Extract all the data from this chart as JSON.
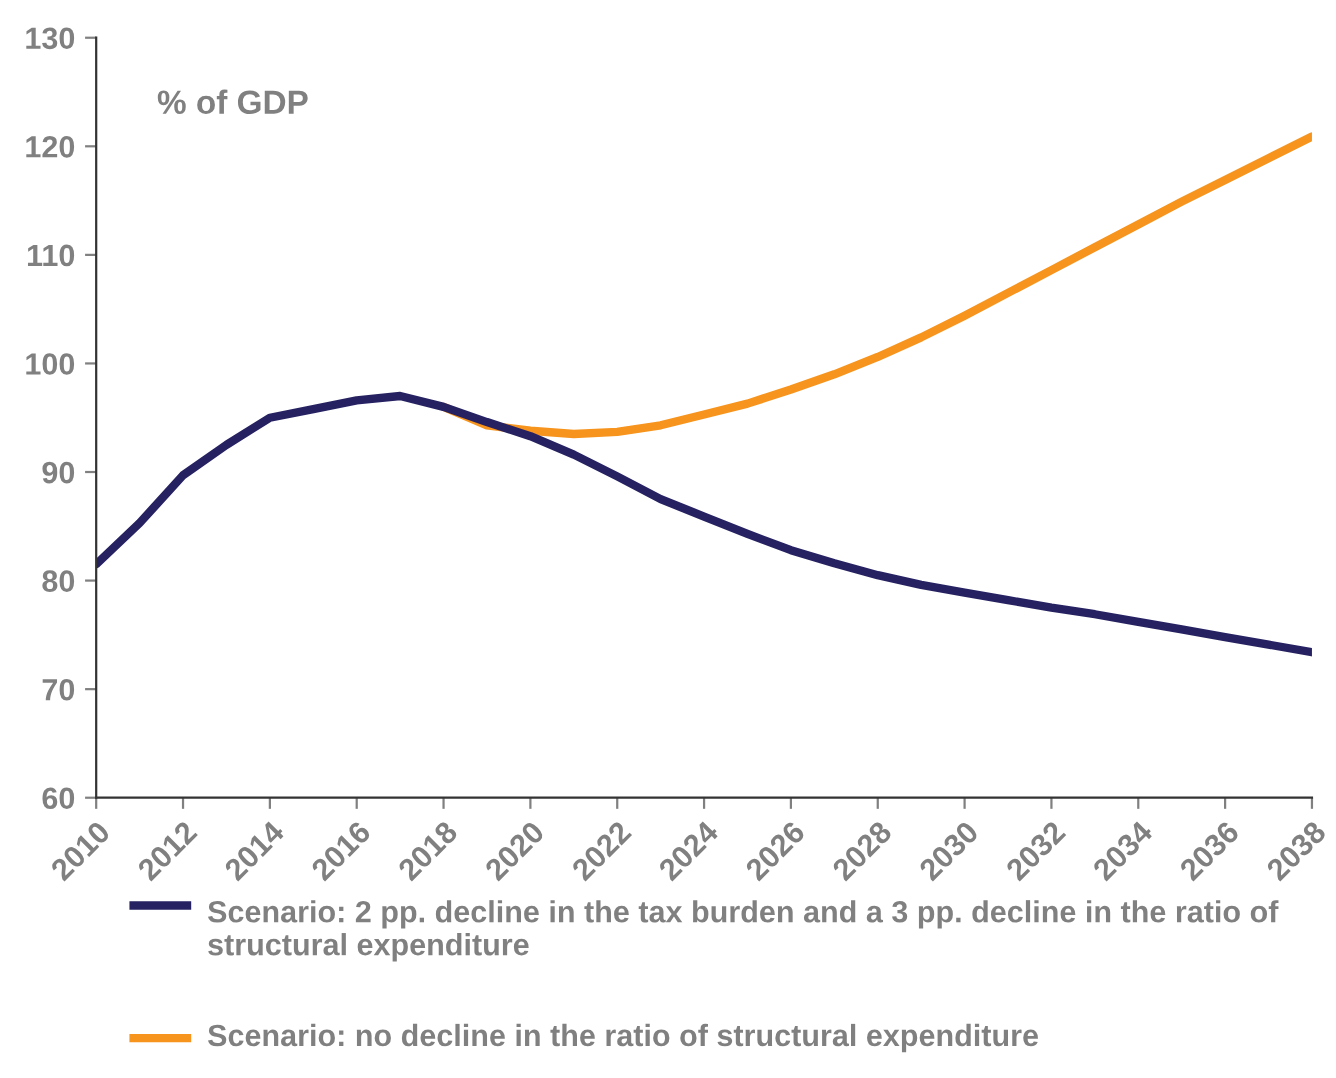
{
  "chart_data": {
    "type": "line",
    "annotations": [
      "% of GDP"
    ],
    "x": [
      2010,
      2011,
      2012,
      2013,
      2014,
      2015,
      2016,
      2017,
      2018,
      2019,
      2020,
      2021,
      2022,
      2023,
      2024,
      2025,
      2026,
      2027,
      2028,
      2029,
      2030,
      2031,
      2032,
      2033,
      2034,
      2035,
      2036,
      2037,
      2038
    ],
    "series": [
      {
        "name": "Scenario: no decline in the ratio of structural expenditure",
        "color": "#f7941d",
        "x": [
          2018,
          2019,
          2020,
          2021,
          2022,
          2023,
          2024,
          2025,
          2026,
          2027,
          2028,
          2029,
          2030,
          2031,
          2032,
          2033,
          2034,
          2035,
          2036,
          2037,
          2038
        ],
        "values": [
          96.0,
          94.3,
          93.8,
          93.5,
          93.7,
          94.3,
          95.3,
          96.3,
          97.6,
          99.0,
          100.6,
          102.4,
          104.4,
          106.5,
          108.6,
          110.7,
          112.8,
          114.9,
          116.9,
          118.9,
          120.9
        ]
      },
      {
        "name": "Scenario: 2 pp. decline in the tax burden and a 3 pp. decline in the ratio of structural expenditure",
        "color": "#262262",
        "values": [
          81.5,
          85.3,
          89.7,
          92.5,
          95.0,
          95.8,
          96.6,
          97.0,
          96.0,
          94.6,
          93.3,
          91.6,
          89.6,
          87.5,
          85.9,
          84.3,
          82.8,
          81.6,
          80.5,
          79.6,
          78.9,
          78.2,
          77.5,
          76.9,
          76.2,
          75.5,
          74.8,
          74.1,
          73.4
        ]
      }
    ],
    "xlim": [
      2010,
      2038
    ],
    "xticks": [
      2010,
      2012,
      2014,
      2016,
      2018,
      2020,
      2022,
      2024,
      2026,
      2028,
      2030,
      2032,
      2034,
      2036,
      2038
    ],
    "ylim": [
      60,
      130
    ],
    "yticks": [
      60,
      70,
      80,
      90,
      100,
      110,
      120,
      130
    ],
    "grid": false,
    "legend": "bottom",
    "marker": "none",
    "line_style": "solid"
  }
}
